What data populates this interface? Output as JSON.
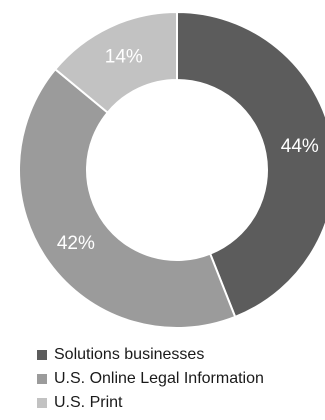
{
  "chart_data": {
    "type": "pie",
    "donut": true,
    "categories": [
      "Solutions businesses",
      "U.S. Online Legal Information",
      "U.S. Print"
    ],
    "values": [
      44,
      42,
      14
    ],
    "value_labels": [
      "44%",
      "42%",
      "14%"
    ],
    "colors": [
      "#5c5c5c",
      "#9b9b9b",
      "#c2c2c2"
    ],
    "legend_position": "bottom-left"
  }
}
